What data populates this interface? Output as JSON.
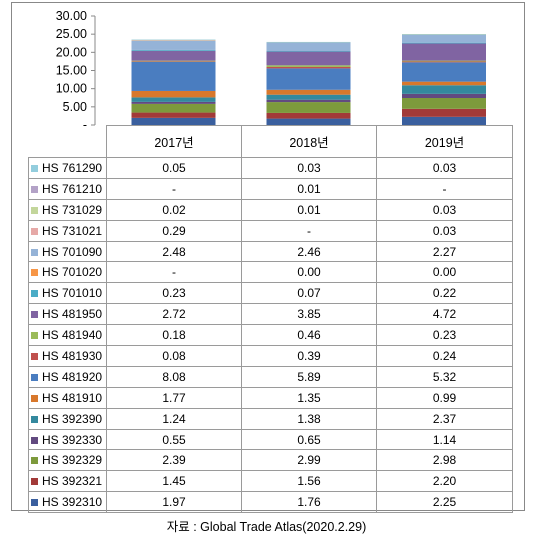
{
  "source_text": "자료 : Global Trade Atlas(2020.2.29)",
  "chart_data": {
    "type": "bar",
    "stacked": true,
    "categories": [
      "2017년",
      "2018년",
      "2019년"
    ],
    "ylim": [
      0,
      30
    ],
    "y_ticks": [
      "-",
      "5.00",
      "10.00",
      "15.00",
      "20.00",
      "25.00",
      "30.00"
    ],
    "grid": false,
    "legend": "table below chart",
    "series": [
      {
        "name": "HS 392310",
        "color": "#3a5f9e",
        "values": [
          "1.97",
          "1.76",
          "2.25"
        ]
      },
      {
        "name": "HS 392321",
        "color": "#a23a38",
        "values": [
          "1.45",
          "1.56",
          "2.20"
        ]
      },
      {
        "name": "HS 392329",
        "color": "#7d9a3c",
        "values": [
          "2.39",
          "2.99",
          "2.98"
        ]
      },
      {
        "name": "HS 392330",
        "color": "#624a80",
        "values": [
          "0.55",
          "0.65",
          "1.14"
        ]
      },
      {
        "name": "HS 392390",
        "color": "#34899e",
        "values": [
          "1.24",
          "1.38",
          "2.37"
        ]
      },
      {
        "name": "HS 481910",
        "color": "#d8782c",
        "values": [
          "1.77",
          "1.35",
          "0.99"
        ]
      },
      {
        "name": "HS 481920",
        "color": "#4a7dc0",
        "values": [
          "8.08",
          "5.89",
          "5.32"
        ]
      },
      {
        "name": "HS 481930",
        "color": "#c0504d",
        "values": [
          "0.08",
          "0.39",
          "0.24"
        ]
      },
      {
        "name": "HS 481940",
        "color": "#9bbb59",
        "values": [
          "0.18",
          "0.46",
          "0.23"
        ]
      },
      {
        "name": "HS 481950",
        "color": "#8064a2",
        "values": [
          "2.72",
          "3.85",
          "4.72"
        ]
      },
      {
        "name": "HS 701010",
        "color": "#4bacc6",
        "values": [
          "0.23",
          "0.07",
          "0.22"
        ]
      },
      {
        "name": "HS 701020",
        "color": "#f79646",
        "values": [
          "-",
          "0.00",
          "0.00"
        ]
      },
      {
        "name": "HS 701090",
        "color": "#95b3d7",
        "values": [
          "2.48",
          "2.46",
          "2.27"
        ]
      },
      {
        "name": "HS 731021",
        "color": "#e6a9a7",
        "values": [
          "0.29",
          "-",
          "0.03"
        ]
      },
      {
        "name": "HS 731029",
        "color": "#c3d69b",
        "values": [
          "0.02",
          "0.01",
          "0.03"
        ]
      },
      {
        "name": "HS 761210",
        "color": "#b3a2c7",
        "values": [
          "-",
          "0.01",
          "-"
        ]
      },
      {
        "name": "HS 761290",
        "color": "#93cddd",
        "values": [
          "0.05",
          "0.03",
          "0.03"
        ]
      }
    ]
  }
}
